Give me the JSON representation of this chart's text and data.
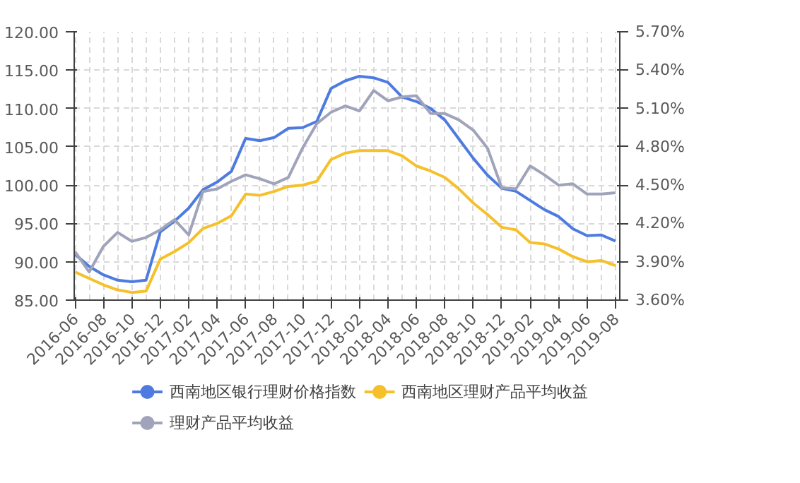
{
  "chart_data": {
    "type": "line",
    "categories": [
      "2016-06",
      null,
      "2016-08",
      null,
      "2016-10",
      null,
      "2016-12",
      null,
      "2017-02",
      null,
      "2017-04",
      null,
      "2017-06",
      null,
      "2017-08",
      null,
      "2017-10",
      null,
      "2017-12",
      null,
      "2018-02",
      null,
      "2018-04",
      null,
      "2018-06",
      null,
      "2018-08",
      null,
      "2018-10",
      null,
      "2018-12",
      null,
      "2019-02",
      null,
      "2019-04",
      null,
      "2019-06",
      null,
      "2019-08"
    ],
    "series": [
      {
        "name": "西南地区银行理财价格指数",
        "color": "#4e7be0",
        "values": [
          91.0,
          89.4,
          88.3,
          87.6,
          87.4,
          87.6,
          93.9,
          95.3,
          97.0,
          99.4,
          100.4,
          101.8,
          106.1,
          105.8,
          106.2,
          107.4,
          107.5,
          108.3,
          112.6,
          113.6,
          114.2,
          114.0,
          113.4,
          111.5,
          110.9,
          110.0,
          108.5,
          106.0,
          103.5,
          101.3,
          99.6,
          99.2,
          98.0,
          96.8,
          95.9,
          94.3,
          93.4,
          93.5,
          92.7
        ]
      },
      {
        "name": "西南地区理财产品平均收益",
        "color": "#f5c02a",
        "axis": "y2",
        "values": [
          3.82,
          3.77,
          3.72,
          3.68,
          3.66,
          3.67,
          3.92,
          3.98,
          4.05,
          4.16,
          4.2,
          4.26,
          4.43,
          4.42,
          4.45,
          4.49,
          4.5,
          4.53,
          4.7,
          4.75,
          4.77,
          4.77,
          4.77,
          4.73,
          4.65,
          4.61,
          4.56,
          4.47,
          4.36,
          4.27,
          4.17,
          4.15,
          4.05,
          4.04,
          4.0,
          3.94,
          3.9,
          3.91,
          3.87
        ]
      },
      {
        "name": "理财产品平均收益",
        "color": "#a0a4bb",
        "axis": "y2",
        "values": [
          3.98,
          3.82,
          4.02,
          4.13,
          4.06,
          4.09,
          4.15,
          4.23,
          4.11,
          4.45,
          4.47,
          4.53,
          4.58,
          4.55,
          4.51,
          4.56,
          4.79,
          4.98,
          5.07,
          5.12,
          5.08,
          5.24,
          5.16,
          5.19,
          5.2,
          5.06,
          5.06,
          5.01,
          4.93,
          4.79,
          4.48,
          4.47,
          4.65,
          4.58,
          4.5,
          4.51,
          4.43,
          4.43,
          4.44
        ]
      }
    ],
    "ylim": [
      85,
      120
    ],
    "yticks": [
      {
        "value": 85,
        "label": "85.00"
      },
      {
        "value": 90,
        "label": "90.00"
      },
      {
        "value": 95,
        "label": "95.00"
      },
      {
        "value": 100,
        "label": "100.00"
      },
      {
        "value": 105,
        "label": "105.00"
      },
      {
        "value": 110,
        "label": "110.00"
      },
      {
        "value": 115,
        "label": "115.00"
      },
      {
        "value": 120,
        "label": "120.00"
      }
    ],
    "y2lim": [
      3.6,
      5.7
    ],
    "y2ticks": [
      {
        "value": 3.6,
        "label": "3.60%"
      },
      {
        "value": 3.9,
        "label": "3.90%"
      },
      {
        "value": 4.2,
        "label": "4.20%"
      },
      {
        "value": 4.5,
        "label": "4.50%"
      },
      {
        "value": 4.8,
        "label": "4.80%"
      },
      {
        "value": 5.1,
        "label": "5.10%"
      },
      {
        "value": 5.4,
        "label": "5.40%"
      },
      {
        "value": 5.7,
        "label": "5.70%"
      }
    ],
    "grid": true,
    "legend": "bottom",
    "line_style": "solid"
  }
}
